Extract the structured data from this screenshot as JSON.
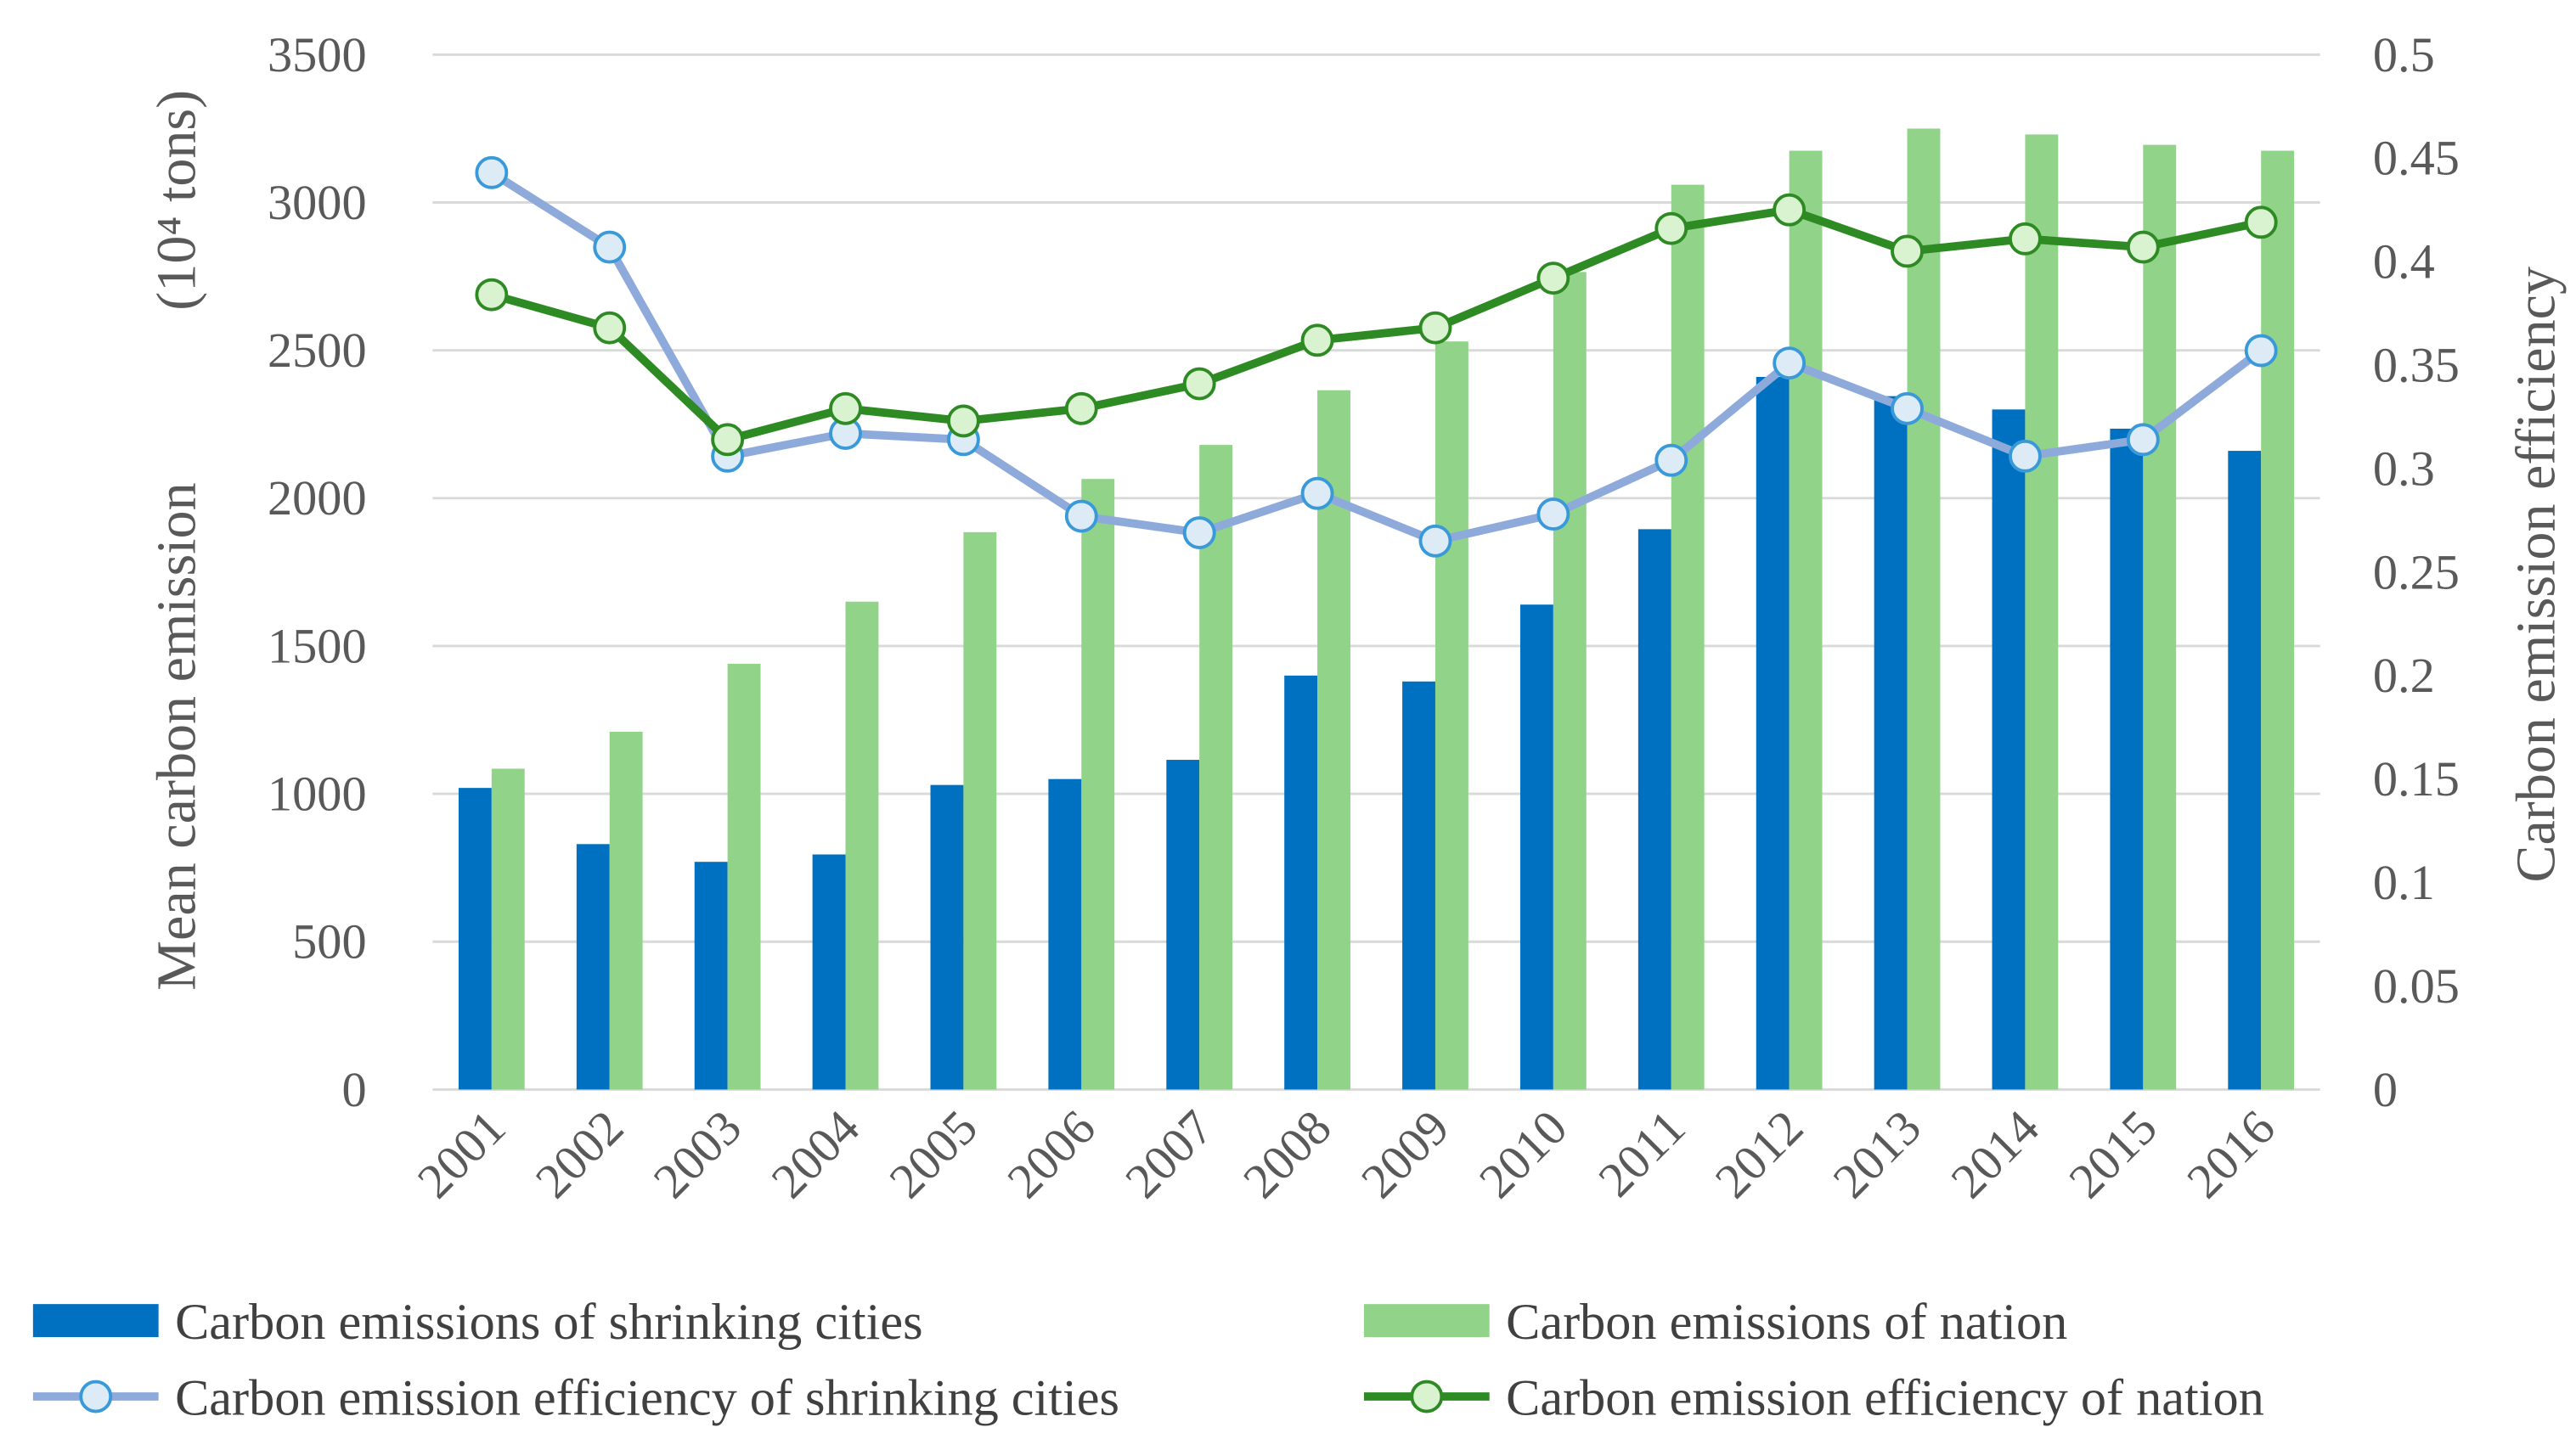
{
  "chart_data": {
    "type": "bar",
    "categories": [
      "2001",
      "2002",
      "2003",
      "2004",
      "2005",
      "2006",
      "2007",
      "2008",
      "2009",
      "2010",
      "2011",
      "2012",
      "2013",
      "2014",
      "2015",
      "2016"
    ],
    "ylabel": "Mean carbon emission",
    "ylabel_unit": "(10⁴ tons)",
    "y2label": "Carbon emission efficiency",
    "ylim": [
      0,
      3500
    ],
    "y2lim": [
      0,
      0.5
    ],
    "yticks": [
      "0",
      "500",
      "1000",
      "1500",
      "2000",
      "2500",
      "3000",
      "3500"
    ],
    "y2ticks": [
      "0",
      "0.05",
      "0.1",
      "0.15",
      "0.2",
      "0.25",
      "0.3",
      "0.35",
      "0.4",
      "0.45",
      "0.5"
    ],
    "grid": true,
    "legend_position": "bottom",
    "series": [
      {
        "name": "Carbon emissions of shrinking cities",
        "type": "bar",
        "axis": "left",
        "color": "#0070C0",
        "values": [
          1020,
          830,
          770,
          795,
          1030,
          1050,
          1115,
          1400,
          1380,
          1640,
          1895,
          2410,
          2345,
          2300,
          2235,
          2160
        ]
      },
      {
        "name": "Carbon emissions of nation",
        "type": "bar",
        "axis": "left",
        "color": "#92D38A",
        "values": [
          1085,
          1210,
          1440,
          1650,
          1885,
          2065,
          2180,
          2365,
          2530,
          2765,
          3060,
          3175,
          3250,
          3230,
          3195,
          3175
        ]
      },
      {
        "name": "Carbon emission efficiency of shrinking cities",
        "type": "line",
        "axis": "right",
        "color": "#8EAADB",
        "marker_stroke": "#3A9AD9",
        "marker_fill": "#DDEBF7",
        "values": [
          0.443,
          0.407,
          0.306,
          0.317,
          0.314,
          0.277,
          0.269,
          0.288,
          0.265,
          0.278,
          0.304,
          0.351,
          0.329,
          0.306,
          0.314,
          0.357
        ]
      },
      {
        "name": "Carbon emission efficiency of nation",
        "type": "line",
        "axis": "right",
        "color": "#2E8B24",
        "marker_stroke": "#2E8B24",
        "marker_fill": "#D9F2D0",
        "values": [
          0.384,
          0.368,
          0.314,
          0.329,
          0.323,
          0.329,
          0.341,
          0.362,
          0.368,
          0.392,
          0.416,
          0.425,
          0.405,
          0.411,
          0.407,
          0.419
        ]
      }
    ]
  }
}
